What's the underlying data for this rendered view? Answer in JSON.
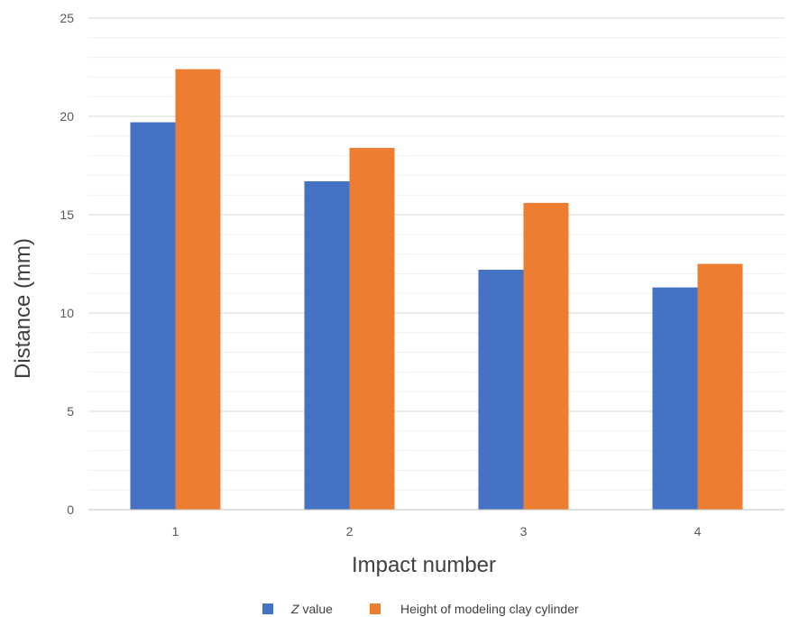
{
  "chart_data": {
    "type": "bar",
    "categories": [
      "1",
      "2",
      "3",
      "4"
    ],
    "series": [
      {
        "name": "Z value",
        "name_italic_part": "Z",
        "name_rest": " value",
        "color": "#4472C4",
        "values": [
          19.7,
          16.7,
          12.2,
          11.3
        ]
      },
      {
        "name": "Height of modeling clay cylinder",
        "color": "#ED7D31",
        "values": [
          22.4,
          18.4,
          15.6,
          12.5
        ]
      }
    ],
    "title": "",
    "xlabel": "Impact number",
    "ylabel": "Distance  (mm)",
    "ylim": [
      0,
      25
    ],
    "yticks": [
      0,
      5,
      10,
      15,
      20,
      25
    ],
    "minor_step": 1,
    "grid": true,
    "legend_position": "bottom"
  }
}
